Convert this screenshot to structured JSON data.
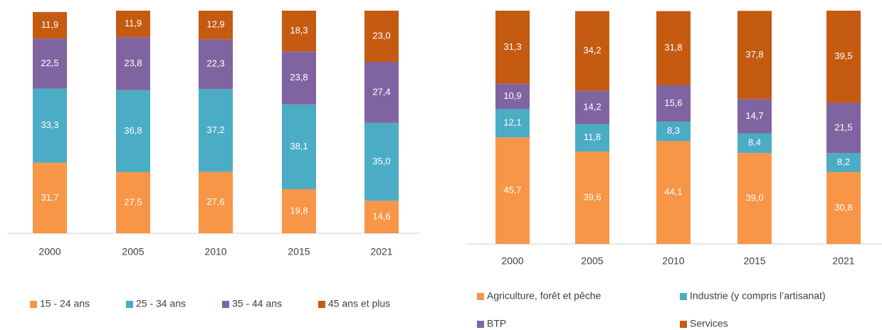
{
  "chart_data": [
    {
      "type": "stacked_bar",
      "categories": [
        "2000",
        "2005",
        "2010",
        "2015",
        "2021"
      ],
      "ylim": [
        0,
        100
      ],
      "series": [
        {
          "name": "15 - 24 ans",
          "color": "#f79646",
          "values": [
            31.7,
            27.5,
            27.6,
            19.8,
            14.6
          ],
          "value_labels": [
            "31,7",
            "27,5",
            "27,6",
            "19,8",
            "14,6"
          ]
        },
        {
          "name": "25 - 34 ans",
          "color": "#4bacc6",
          "values": [
            33.3,
            36.8,
            37.2,
            38.1,
            35.0
          ],
          "value_labels": [
            "33,3",
            "36,8",
            "37,2",
            "38,1",
            "35,0"
          ]
        },
        {
          "name": "35 - 44 ans",
          "color": "#8064a2",
          "values": [
            22.5,
            23.8,
            22.3,
            23.8,
            27.4
          ],
          "value_labels": [
            "22,5",
            "23,8",
            "22,3",
            "23,8",
            "27,4"
          ]
        },
        {
          "name": "45 ans et plus",
          "color": "#c55a11",
          "values": [
            11.9,
            11.9,
            12.9,
            18.3,
            23.0
          ],
          "value_labels": [
            "11,9",
            "11,9",
            "12,9",
            "18,3",
            "23,0"
          ]
        }
      ]
    },
    {
      "type": "stacked_bar",
      "categories": [
        "2000",
        "2005",
        "2010",
        "2015",
        "2021"
      ],
      "ylim": [
        0,
        100
      ],
      "series": [
        {
          "name": "Agriculture, forêt et pêche",
          "color": "#f79646",
          "values": [
            45.7,
            39.6,
            44.1,
            39.0,
            30.8
          ],
          "value_labels": [
            "45,7",
            "39,6",
            "44,1",
            "39,0",
            "30,8"
          ]
        },
        {
          "name": "Industrie (y compris l’artisanat)",
          "color": "#4bacc6",
          "values": [
            12.1,
            11.8,
            8.3,
            8.4,
            8.2
          ],
          "value_labels": [
            "12,1",
            "11,8",
            "8,3",
            "8,4",
            "8,2"
          ]
        },
        {
          "name": "BTP",
          "color": "#8064a2",
          "values": [
            10.9,
            14.2,
            15.6,
            14.7,
            21.5
          ],
          "value_labels": [
            "10,9",
            "14,2",
            "15,6",
            "14,7",
            "21,5"
          ]
        },
        {
          "name": "Services",
          "color": "#c55a11",
          "values": [
            31.3,
            34.2,
            31.8,
            37.8,
            39.5
          ],
          "value_labels": [
            "31,3",
            "34,2",
            "31,8",
            "37,8",
            "39,5"
          ]
        }
      ]
    }
  ]
}
